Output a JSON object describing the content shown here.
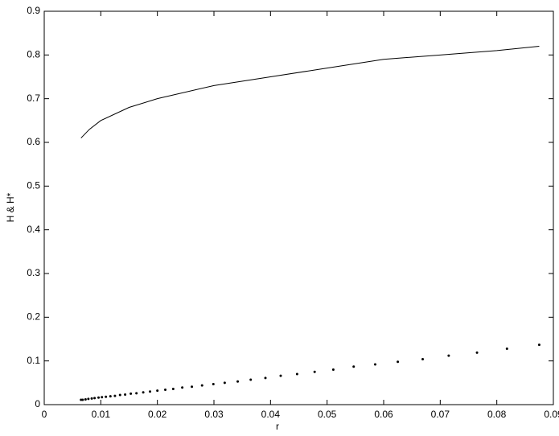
{
  "chart_data": {
    "type": "line",
    "xlabel": "r",
    "ylabel": "H & H*",
    "xlim": [
      0,
      0.09
    ],
    "xticks": [
      0,
      0.01,
      0.02,
      0.03,
      0.04,
      0.05,
      0.06,
      0.07,
      0.08,
      0.09
    ],
    "ylim": [
      0,
      0.9
    ],
    "yticks": [
      0,
      0.1,
      0.2,
      0.3,
      0.4,
      0.5,
      0.6,
      0.7,
      0.8,
      0.9
    ],
    "grid": false,
    "series": [
      {
        "color": "#000000",
        "style": "solid",
        "x": [
          0.0065,
          0.008,
          0.01,
          0.015,
          0.02,
          0.03,
          0.04,
          0.05,
          0.06,
          0.07,
          0.08,
          0.0875
        ],
        "values": [
          0.61,
          0.63,
          0.65,
          0.68,
          0.7,
          0.73,
          0.75,
          0.77,
          0.79,
          0.8,
          0.81,
          0.82
        ]
      },
      {
        "color": "#000000",
        "style": "dots",
        "x": [
          0.0065,
          0.0068,
          0.0073,
          0.0078,
          0.0084,
          0.0089,
          0.0096,
          0.0102,
          0.0109,
          0.0117,
          0.0125,
          0.0134,
          0.0143,
          0.0153,
          0.0163,
          0.0175,
          0.0187,
          0.02,
          0.0214,
          0.0228,
          0.0244,
          0.0261,
          0.0279,
          0.0299,
          0.0319,
          0.0342,
          0.0365,
          0.0391,
          0.0418,
          0.0447,
          0.0478,
          0.0511,
          0.0547,
          0.0585,
          0.0625,
          0.0669,
          0.0715,
          0.0765,
          0.0818,
          0.0875
        ],
        "values": [
          0.011,
          0.011,
          0.012,
          0.013,
          0.014,
          0.015,
          0.016,
          0.017,
          0.018,
          0.019,
          0.02,
          0.022,
          0.023,
          0.025,
          0.026,
          0.028,
          0.03,
          0.032,
          0.034,
          0.036,
          0.039,
          0.041,
          0.044,
          0.047,
          0.05,
          0.053,
          0.057,
          0.061,
          0.066,
          0.07,
          0.075,
          0.08,
          0.087,
          0.092,
          0.098,
          0.104,
          0.112,
          0.119,
          0.128,
          0.137
        ]
      }
    ]
  }
}
